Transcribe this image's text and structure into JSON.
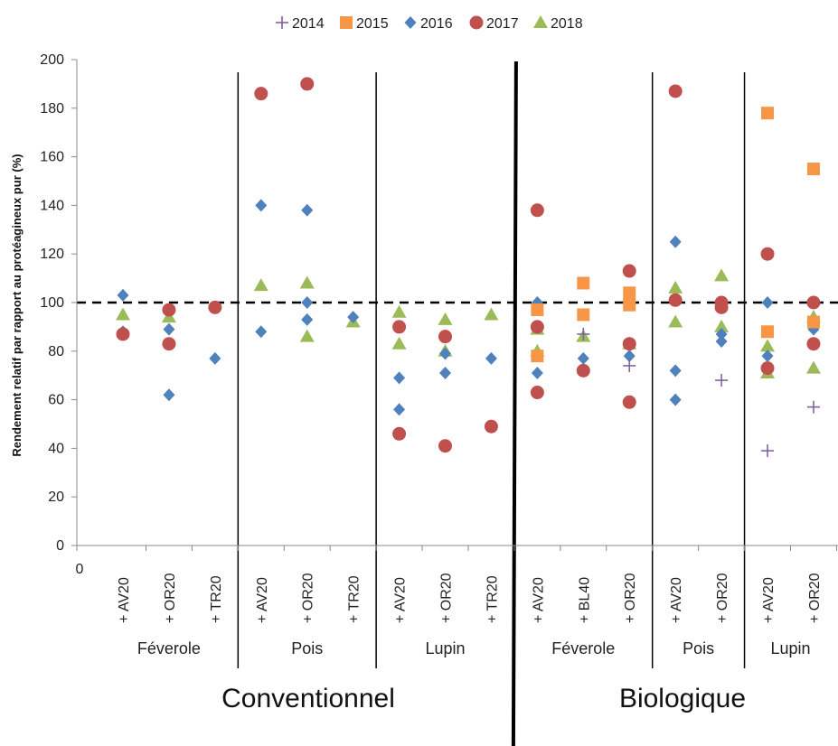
{
  "chart_data": {
    "type": "scatter",
    "ylabel": "Rendement relatif par rapport au protéagineux pur (%)",
    "ylim": [
      0,
      200
    ],
    "yticks": [
      0,
      20,
      40,
      60,
      80,
      100,
      120,
      140,
      160,
      180,
      200
    ],
    "x_origin_label": "0",
    "reference_line": 100,
    "legend_position": "top",
    "series": [
      {
        "name": "2014",
        "color": "#8064a2",
        "marker": "plus"
      },
      {
        "name": "2015",
        "color": "#f79646",
        "marker": "square"
      },
      {
        "name": "2016",
        "color": "#4f81bd",
        "marker": "diamond"
      },
      {
        "name": "2017",
        "color": "#c0504d",
        "marker": "circle"
      },
      {
        "name": "2018",
        "color": "#9bbb59",
        "marker": "triangle"
      }
    ],
    "categories": [
      "+ AV20",
      "+ OR20",
      "+ TR20",
      "+ AV20",
      "+ OR20",
      "+ TR20",
      "+ AV20",
      "+ OR20",
      "+ TR20",
      "+ AV20",
      "+ BL40",
      "+ OR20",
      "+ AV20",
      "+ OR20",
      "+ AV20",
      "+ OR20"
    ],
    "groups": [
      {
        "label": "Féverole",
        "start": 0,
        "end": 2
      },
      {
        "label": "Pois",
        "start": 3,
        "end": 5
      },
      {
        "label": "Lupin",
        "start": 6,
        "end": 8
      },
      {
        "label": "Féverole",
        "start": 9,
        "end": 11
      },
      {
        "label": "Pois",
        "start": 12,
        "end": 13
      },
      {
        "label": "Lupin",
        "start": 14,
        "end": 15
      }
    ],
    "systems": [
      {
        "label": "Conventionnel",
        "start": 0,
        "end": 8
      },
      {
        "label": "Biologique",
        "start": 9,
        "end": 15
      }
    ],
    "points": {
      "2014": [
        [
          10,
          87
        ],
        [
          11,
          74
        ],
        [
          13,
          68
        ],
        [
          14,
          39
        ],
        [
          15,
          57
        ]
      ],
      "2015": [
        [
          9,
          97
        ],
        [
          9,
          78
        ],
        [
          10,
          108
        ],
        [
          10,
          95
        ],
        [
          11,
          104
        ],
        [
          11,
          99
        ],
        [
          14,
          178
        ],
        [
          14,
          88
        ],
        [
          15,
          155
        ],
        [
          15,
          92
        ]
      ],
      "2016": [
        [
          0,
          103
        ],
        [
          0,
          88
        ],
        [
          1,
          89
        ],
        [
          1,
          62
        ],
        [
          2,
          77
        ],
        [
          3,
          140
        ],
        [
          3,
          88
        ],
        [
          4,
          138
        ],
        [
          4,
          100
        ],
        [
          4,
          93
        ],
        [
          5,
          94
        ],
        [
          6,
          69
        ],
        [
          6,
          56
        ],
        [
          7,
          79
        ],
        [
          7,
          71
        ],
        [
          8,
          77
        ],
        [
          9,
          100
        ],
        [
          9,
          71
        ],
        [
          10,
          77
        ],
        [
          11,
          100
        ],
        [
          11,
          78
        ],
        [
          12,
          125
        ],
        [
          12,
          72
        ],
        [
          12,
          60
        ],
        [
          13,
          87
        ],
        [
          13,
          84
        ],
        [
          14,
          100
        ],
        [
          14,
          78
        ],
        [
          15,
          89
        ]
      ],
      "2017": [
        [
          0,
          87
        ],
        [
          1,
          97
        ],
        [
          1,
          83
        ],
        [
          2,
          98
        ],
        [
          3,
          186
        ],
        [
          4,
          190
        ],
        [
          6,
          90
        ],
        [
          6,
          46
        ],
        [
          7,
          86
        ],
        [
          7,
          41
        ],
        [
          8,
          49
        ],
        [
          9,
          138
        ],
        [
          9,
          90
        ],
        [
          9,
          63
        ],
        [
          10,
          72
        ],
        [
          11,
          113
        ],
        [
          11,
          83
        ],
        [
          11,
          59
        ],
        [
          12,
          187
        ],
        [
          12,
          101
        ],
        [
          13,
          100
        ],
        [
          13,
          98
        ],
        [
          14,
          120
        ],
        [
          14,
          73
        ],
        [
          15,
          100
        ],
        [
          15,
          83
        ]
      ],
      "2018": [
        [
          0,
          95
        ],
        [
          1,
          94
        ],
        [
          3,
          107
        ],
        [
          4,
          108
        ],
        [
          4,
          86
        ],
        [
          5,
          92
        ],
        [
          6,
          96
        ],
        [
          6,
          83
        ],
        [
          7,
          93
        ],
        [
          7,
          80
        ],
        [
          8,
          95
        ],
        [
          9,
          89
        ],
        [
          9,
          80
        ],
        [
          10,
          86
        ],
        [
          11,
          83
        ],
        [
          12,
          106
        ],
        [
          12,
          92
        ],
        [
          13,
          111
        ],
        [
          13,
          90
        ],
        [
          14,
          82
        ],
        [
          14,
          71
        ],
        [
          15,
          94
        ],
        [
          15,
          73
        ]
      ]
    }
  }
}
